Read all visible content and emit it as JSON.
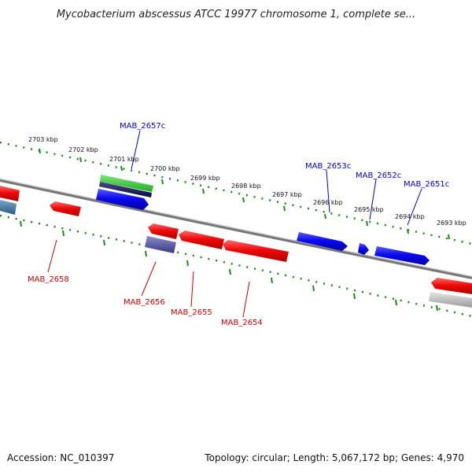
{
  "title": "Mycobacterium abscessus ATCC 19977 chromosome 1, complete se...",
  "footer": {
    "accession": "Accession: NC_010397",
    "summary": "Topology: circular; Length: 5,067,172 bp; Genes: 4,970"
  },
  "colors": {
    "forward_gene": "#0a0af0",
    "reverse_gene": "#ee0a0a",
    "backbone": "#808080",
    "ticks": "#1a8a1a",
    "label_forward": "#0000cc",
    "label_reverse": "#cc0000"
  },
  "ticks": [
    {
      "label": "2703 kbp"
    },
    {
      "label": "2702 kbp"
    },
    {
      "label": "2701 kbp"
    },
    {
      "label": "2700 kbp"
    },
    {
      "label": "2699 kbp"
    },
    {
      "label": "2698 kbp"
    },
    {
      "label": "2697 kbp"
    },
    {
      "label": "2696 kbp"
    },
    {
      "label": "2695 kbp"
    },
    {
      "label": "2694 kbp"
    },
    {
      "label": "2693 kbp"
    }
  ],
  "gene_labels": {
    "forward": [
      "MAB_2657c",
      "MAB_2653c",
      "MAB_2652c",
      "MAB_2651c"
    ],
    "reverse": [
      "MAB_2658",
      "MAB_2656",
      "MAB_2655",
      "MAB_2654"
    ]
  }
}
